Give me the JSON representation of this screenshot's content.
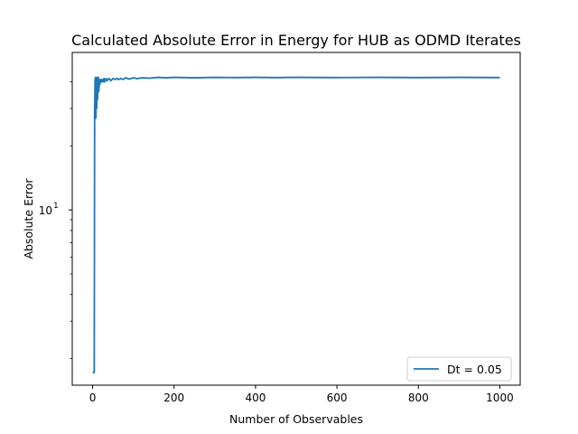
{
  "chart_data": {
    "type": "line",
    "title": "Calculated Absolute Error in Energy for HUB as ODMD Iterates",
    "xlabel": "Number of Observables",
    "ylabel": "Absolute Error",
    "xlim": [
      -50,
      1050
    ],
    "ylim": [
      1.5,
      55
    ],
    "y_scale": "log",
    "x_ticks": [
      0,
      200,
      400,
      600,
      800,
      1000
    ],
    "x_tick_labels": [
      "0",
      "200",
      "400",
      "600",
      "800",
      "1000"
    ],
    "y_major_tick": {
      "value": 10,
      "base": "10",
      "exponent": "1"
    },
    "y_minor_ticks": [
      2,
      3,
      4,
      5,
      6,
      7,
      8,
      9,
      20,
      30,
      40
    ],
    "grid": false,
    "legend_position": "lower-right",
    "series": [
      {
        "name": "Dt = 0.05",
        "color": "#1f77b4",
        "x": [
          0,
          4,
          5,
          6,
          7,
          8,
          9,
          10,
          11,
          12,
          13,
          14,
          15,
          16,
          17,
          18,
          19,
          20,
          21,
          22,
          24,
          26,
          28,
          30,
          33,
          36,
          40,
          45,
          50,
          55,
          60,
          65,
          70,
          75,
          80,
          90,
          100,
          110,
          120,
          140,
          160,
          180,
          200,
          250,
          300,
          350,
          400,
          450,
          500,
          600,
          700,
          800,
          900,
          1000
        ],
        "y": [
          1.72,
          1.72,
          28,
          41,
          42,
          27,
          40,
          30,
          42,
          33,
          37,
          42,
          36,
          38,
          41,
          39,
          41,
          40,
          41,
          40,
          41,
          40,
          41.5,
          40,
          41.5,
          40.5,
          41.5,
          40.5,
          41.5,
          41,
          41.5,
          41,
          41.5,
          41,
          41.8,
          41.2,
          41.8,
          41.4,
          41.8,
          41.6,
          42,
          41.8,
          42,
          41.8,
          42,
          41.9,
          42,
          41.9,
          42,
          41.9,
          42,
          41.9,
          42,
          41.9
        ]
      }
    ]
  }
}
